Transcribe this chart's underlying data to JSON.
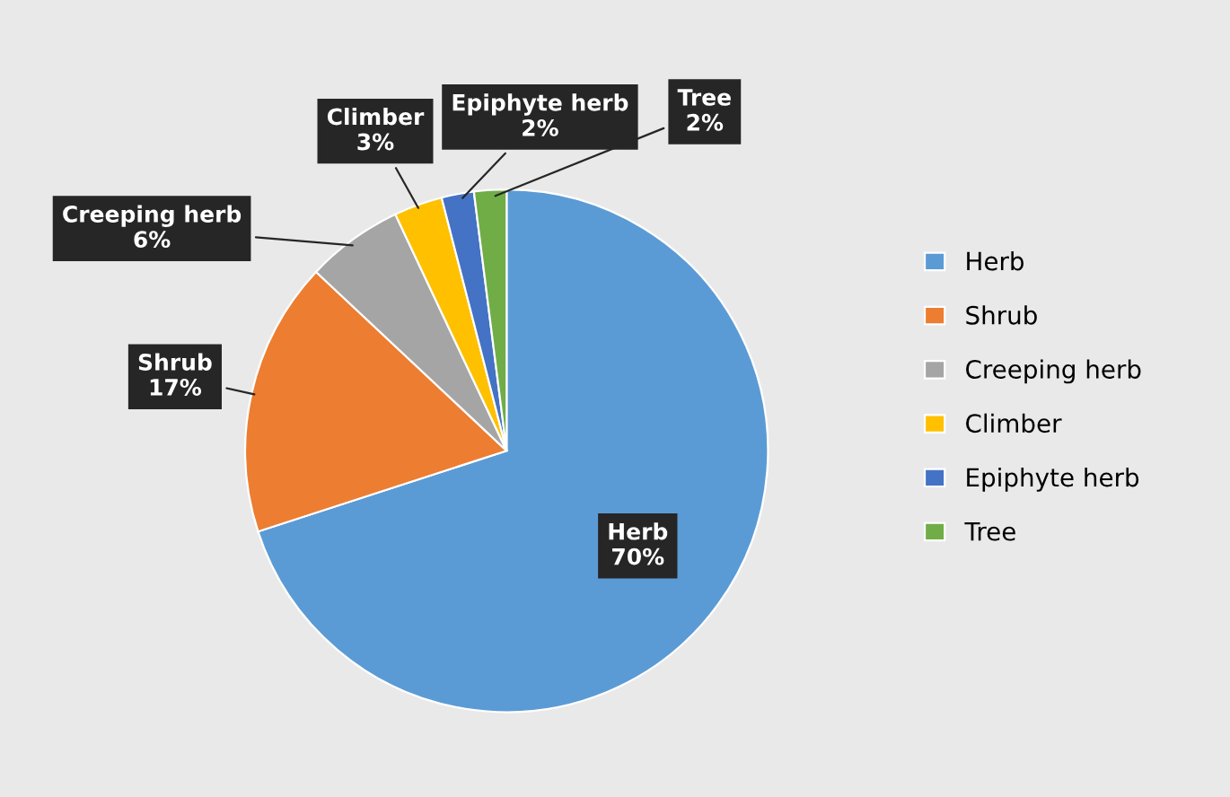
{
  "chart_data": {
    "type": "pie",
    "categories": [
      "Herb",
      "Shrub",
      "Creeping herb",
      "Climber",
      "Epiphyte herb",
      "Tree"
    ],
    "values": [
      70,
      17,
      6,
      3,
      2,
      2
    ],
    "value_labels": [
      "70%",
      "17%",
      "6%",
      "3%",
      "2%",
      "2%"
    ],
    "colors": [
      "#5b9bd5",
      "#ed7d31",
      "#a5a5a5",
      "#ffc000",
      "#4472c4",
      "#70ad47"
    ],
    "legend": "right"
  }
}
